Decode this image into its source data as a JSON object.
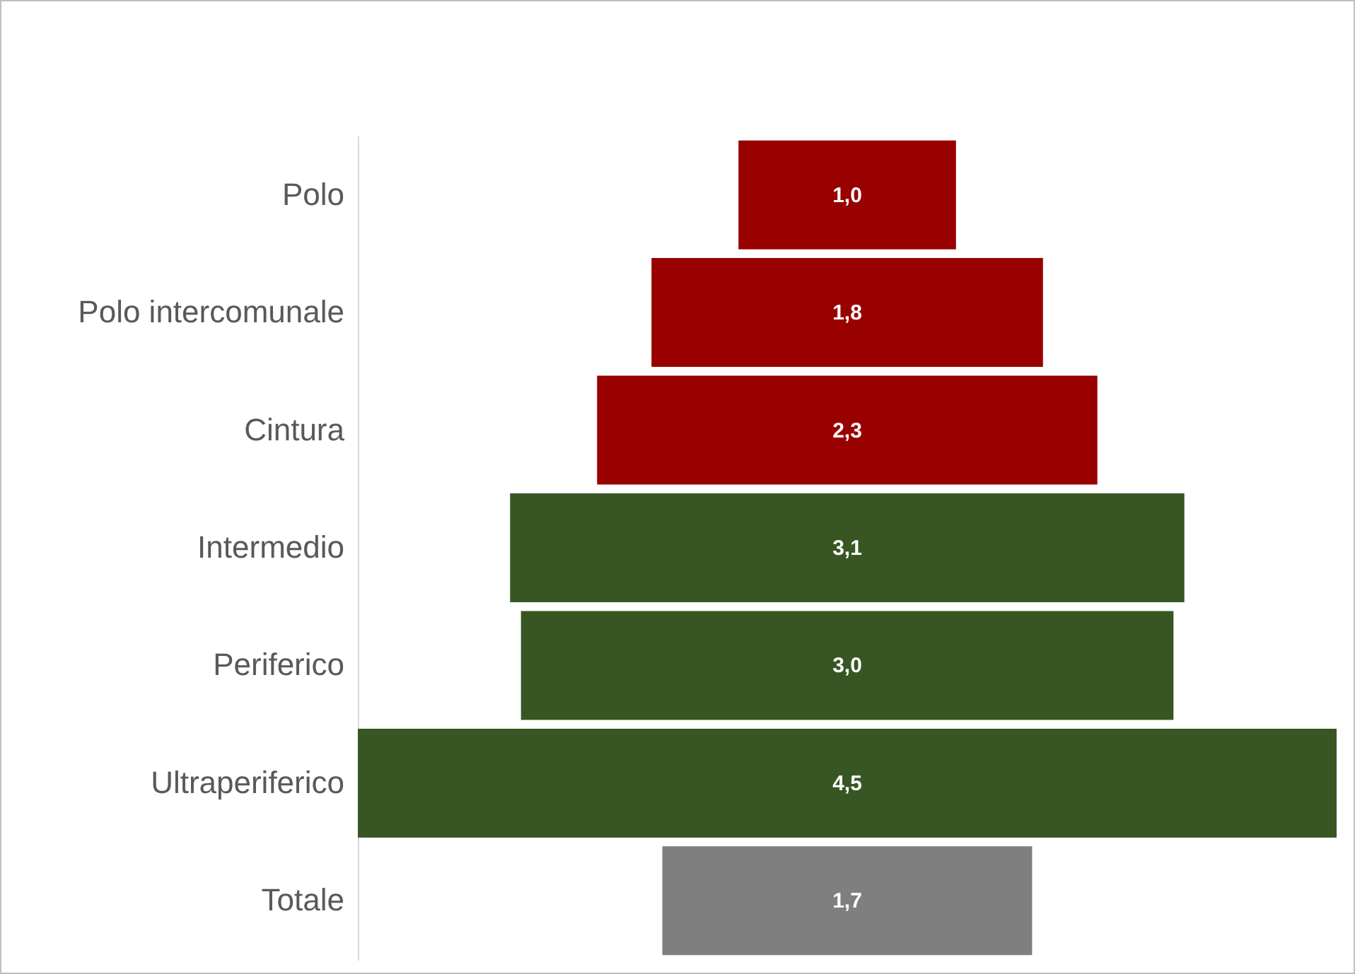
{
  "chart_data": {
    "type": "other",
    "categories": [
      "Polo",
      "Polo intercomunale",
      "Cintura",
      "Intermedio",
      "Periferico",
      "Ultraperiferico",
      "Totale"
    ],
    "values": [
      1.0,
      1.8,
      2.3,
      3.1,
      3.0,
      4.5,
      1.7
    ],
    "colors": [
      "#990000",
      "#990000",
      "#990000",
      "#375623",
      "#375623",
      "#375623",
      "#7f7f7f"
    ],
    "value_labels": [
      "1,0",
      "1,8",
      "2,3",
      "3,1",
      "3,0",
      "4,5",
      "1,7"
    ]
  }
}
